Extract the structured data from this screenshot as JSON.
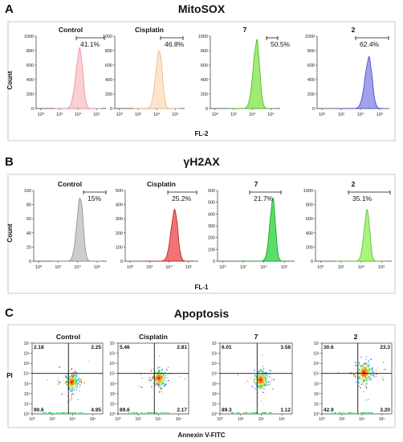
{
  "figure": {
    "panels": [
      {
        "letter": "A",
        "title": "MitoSOX",
        "xlabel": "FL-2",
        "ylabel": "Count",
        "chart_data": {
          "type": "area",
          "x_scale": "log",
          "x_ticks": [
            "10⁰",
            "10²",
            "10⁴",
            "10⁶"
          ],
          "series": [
            {
              "name": "Control",
              "peak_log10": 4.2,
              "peak_count": 820,
              "width": 0.32,
              "gate_pct": "41.1%",
              "fill": "#f8c8cc",
              "stroke": "#ee8f98",
              "yticks": [
                0,
                200,
                400,
                600,
                800,
                1000
              ]
            },
            {
              "name": "Cisplatin",
              "peak_log10": 4.3,
              "peak_count": 800,
              "width": 0.3,
              "gate_pct": "46.8%",
              "fill": "#fde0c2",
              "stroke": "#f2b57c",
              "yticks": [
                0,
                200,
                400,
                600,
                800,
                1000
              ]
            },
            {
              "name": "7",
              "peak_log10": 4.5,
              "peak_count": 930,
              "width": 0.3,
              "gate_pct": "50.5%",
              "fill": "#8fe85a",
              "stroke": "#3fb81e",
              "yticks": [
                0,
                200,
                400,
                600,
                800,
                1000
              ]
            },
            {
              "name": "2",
              "peak_log10": 4.9,
              "peak_count": 700,
              "width": 0.32,
              "gate_pct": "62.4%",
              "fill": "#8f92e8",
              "stroke": "#4347c0",
              "yticks": [
                0,
                200,
                400,
                600,
                800,
                1000
              ]
            }
          ]
        }
      },
      {
        "letter": "B",
        "title": "γH2AX",
        "xlabel": "FL-1",
        "ylabel": "Count",
        "chart_data": {
          "type": "area",
          "x_scale": "log",
          "x_ticks": [
            "10⁰",
            "10²",
            "10⁴",
            "10⁶"
          ],
          "series": [
            {
              "name": "Control",
              "peak_log10": 4.3,
              "peak_count": 90,
              "width": 0.28,
              "gate_pct": "15%",
              "fill": "#c4c4c4",
              "stroke": "#8a8a8a",
              "yticks": [
                0,
                20,
                40,
                60,
                80,
                100
              ]
            },
            {
              "name": "Cisplatin",
              "peak_log10": 4.6,
              "peak_count": 360,
              "width": 0.3,
              "gate_pct": "25.2%",
              "fill": "#ef5a5a",
              "stroke": "#b81b1b",
              "yticks": [
                0,
                100,
                200,
                300,
                400,
                500
              ]
            },
            {
              "name": "7",
              "peak_log10": 4.9,
              "peak_count": 520,
              "width": 0.24,
              "gate_pct": "21.7%",
              "fill": "#3ed84f",
              "stroke": "#13991f",
              "yticks": [
                0,
                100,
                200,
                300,
                400,
                500,
                600
              ]
            },
            {
              "name": "2",
              "peak_log10": 4.6,
              "peak_count": 720,
              "width": 0.24,
              "gate_pct": "35.1%",
              "fill": "#9cf06a",
              "stroke": "#54c02a",
              "yticks": [
                0,
                200,
                400,
                600,
                800,
                1000
              ]
            }
          ]
        }
      },
      {
        "letter": "C",
        "title": "Apoptosis",
        "xlabel": "Annexin V-FITC",
        "ylabel": "PI",
        "chart_data": {
          "type": "scatter",
          "x_scale": "log",
          "y_scale": "log",
          "x_ticks": [
            "10⁰",
            "10²",
            "10⁴",
            "10⁶"
          ],
          "y_ticks": [
            "10⁰",
            "10¹",
            "10²",
            "10³",
            "10⁴",
            "10⁵",
            "10⁶",
            "10⁷"
          ],
          "series": [
            {
              "name": "Control",
              "q_ul": "2.18",
              "q_ur": "2.25",
              "q_ll": "90.6",
              "q_lr": "4.95",
              "cx": 3.9,
              "cy": 3.2,
              "spread": 0.45
            },
            {
              "name": "Cisplatin",
              "q_ul": "5.46",
              "q_ur": "2.81",
              "q_ll": "89.6",
              "q_lr": "2.17",
              "cx": 4.0,
              "cy": 3.6,
              "spread": 0.5
            },
            {
              "name": "7",
              "q_ul": "6.01",
              "q_ur": "3.58",
              "q_ll": "89.3",
              "q_lr": "1.12",
              "cx": 3.9,
              "cy": 3.4,
              "spread": 0.5
            },
            {
              "name": "2",
              "q_ul": "30.6",
              "q_ur": "23.3",
              "q_ll": "42.9",
              "q_lr": "3.20",
              "cx": 4.2,
              "cy": 4.1,
              "spread": 0.6
            }
          ]
        }
      }
    ]
  }
}
